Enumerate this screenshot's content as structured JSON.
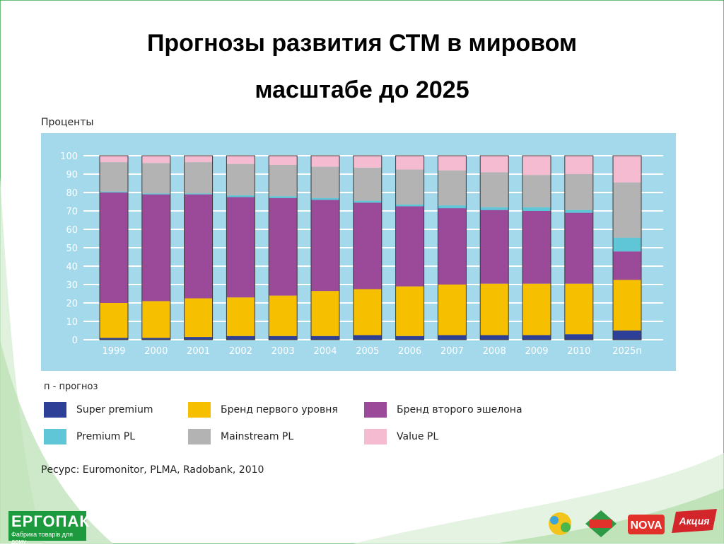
{
  "title_line1": "Прогнозы развития СТМ в мировом",
  "title_line2": "масштабе до 2025",
  "colors": {
    "super_premium": "#2e3f98",
    "brand_first": "#f6c000",
    "brand_second": "#9a4a99",
    "premium_pl": "#5ec6d6",
    "mainstream_pl": "#b3b3b3",
    "value_pl": "#f5bcd1",
    "plot_bg": "#a4d9ec",
    "grid": "#ffffff",
    "slide_green": "#1e9a3e"
  },
  "forecast_note": "п - прогноз",
  "source": "Ресурс: Euromonitor, PLMA, Radobank, 2010",
  "legend": [
    {
      "key": "super_premium",
      "label": "Super premium"
    },
    {
      "key": "brand_first",
      "label": "Бренд первого уровня"
    },
    {
      "key": "brand_second",
      "label": "Бренд второго эшелона"
    },
    {
      "key": "premium_pl",
      "label": "Premium PL"
    },
    {
      "key": "mainstream_pl",
      "label": "Mainstream PL"
    },
    {
      "key": "value_pl",
      "label": "Value PL"
    }
  ],
  "logo": {
    "name": "ЕРГОПАК",
    "subtitle": "Фабрика товарів для дому"
  },
  "brand_icons": [
    "doodle-logo-icon",
    "meloch-zhizni-logo-icon",
    "nova-logo-icon",
    "akciya-logo-icon"
  ],
  "brand_labels": {
    "nova": "NOVA",
    "akciya": "Акция"
  },
  "chart_data": {
    "type": "bar",
    "stacked": true,
    "ylabel": "Проценты",
    "ylim": [
      0,
      100
    ],
    "yticks": [
      0,
      10,
      20,
      30,
      40,
      50,
      60,
      70,
      80,
      90,
      100
    ],
    "grid": true,
    "categories": [
      "1999",
      "2000",
      "2001",
      "2002",
      "2003",
      "2004",
      "2005",
      "2006",
      "2007",
      "2008",
      "2009",
      "2010",
      "2025п"
    ],
    "series": [
      {
        "key": "super_premium",
        "name": "Super premium",
        "values": [
          1,
          1,
          1.5,
          2,
          2,
          2,
          2.5,
          2,
          2.5,
          2.5,
          2.5,
          3,
          5
        ]
      },
      {
        "key": "brand_first",
        "name": "Бренд первого уровня",
        "values": [
          19,
          20,
          21,
          21,
          22,
          24.5,
          25,
          27,
          27.5,
          28,
          28,
          27.5,
          27.5
        ]
      },
      {
        "key": "brand_second",
        "name": "Бренд второго эшелона",
        "values": [
          60,
          58,
          56.5,
          54.5,
          53,
          49.5,
          47,
          43.5,
          41.5,
          40,
          39.5,
          38.5,
          15.5
        ]
      },
      {
        "key": "premium_pl",
        "name": "Premium PL",
        "values": [
          0.5,
          0.5,
          0.5,
          1,
          1,
          1,
          1,
          1,
          1.5,
          1.5,
          2,
          1.5,
          7.5
        ]
      },
      {
        "key": "mainstream_pl",
        "name": "Mainstream PL",
        "values": [
          16,
          16.5,
          17,
          17,
          17,
          17,
          18,
          19,
          19,
          19,
          17.5,
          19.5,
          30
        ]
      },
      {
        "key": "value_pl",
        "name": "Value PL",
        "values": [
          3.5,
          4,
          3.5,
          4.5,
          5,
          6,
          6.5,
          7.5,
          8,
          9,
          10.5,
          10,
          14.5
        ]
      }
    ]
  }
}
